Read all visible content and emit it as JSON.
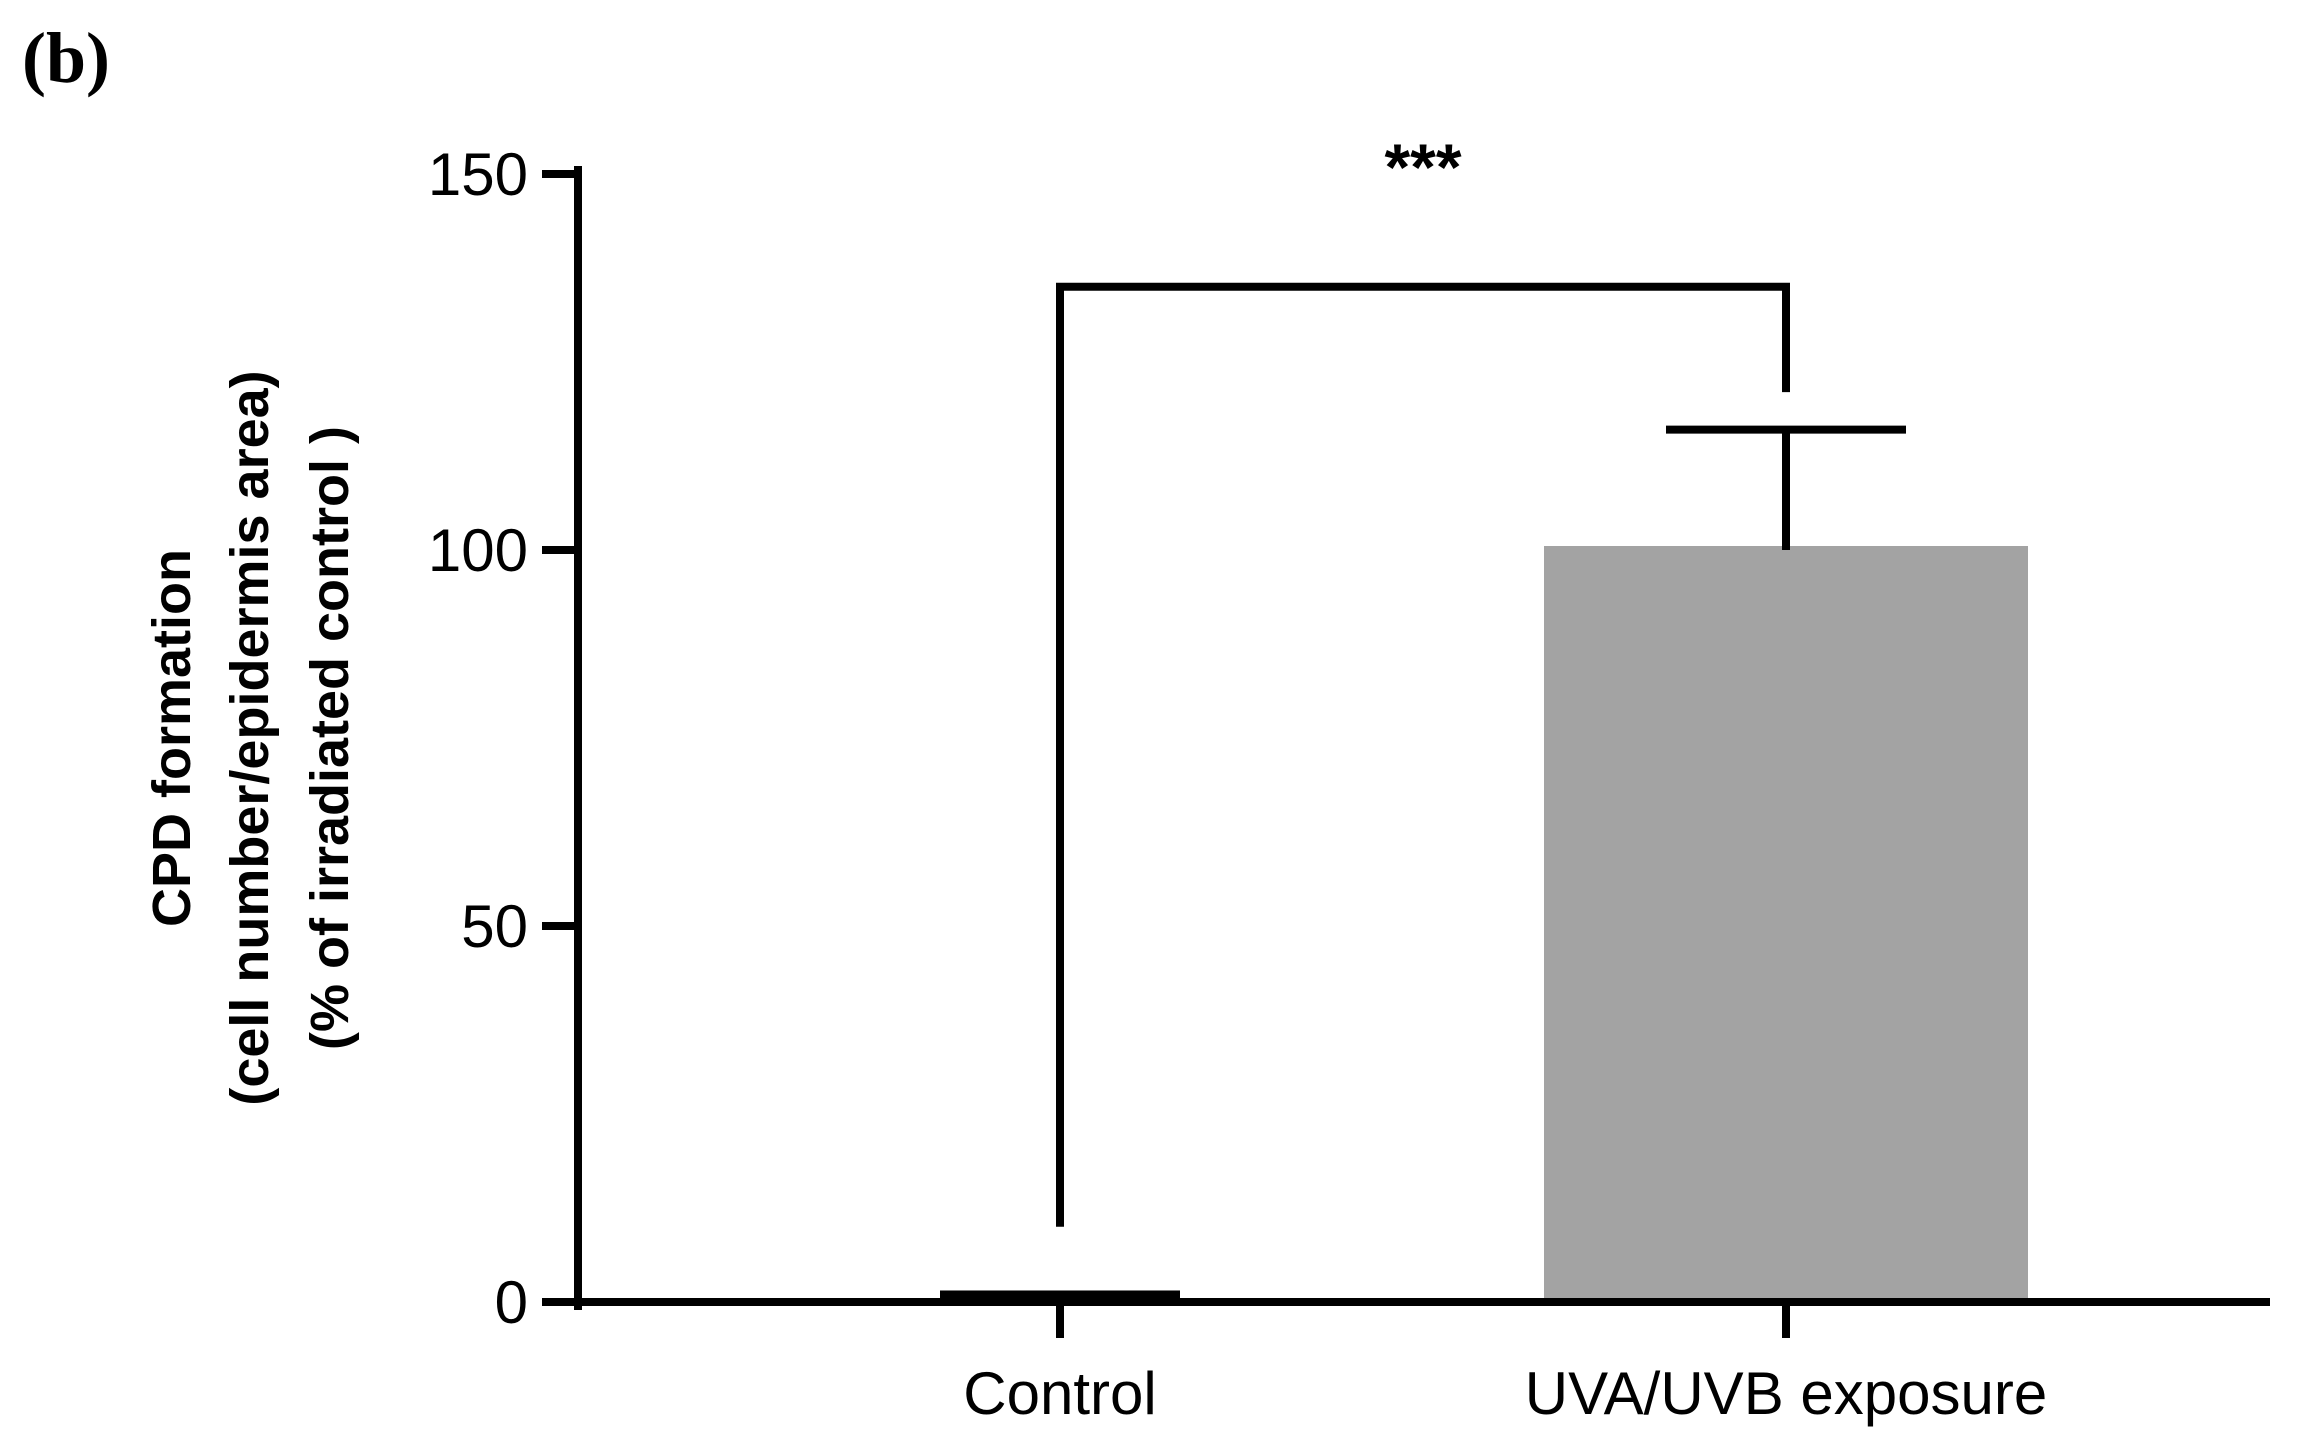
{
  "panel_label": "(b)",
  "chart_data": {
    "type": "bar",
    "categories": [
      "Control",
      "UVA/UVB exposure"
    ],
    "series": [
      {
        "values": [
          1,
          100
        ],
        "error": [
          0,
          16
        ],
        "colors": [
          "#000000",
          "#a3a3a3"
        ]
      }
    ],
    "ylabel": [
      "CPD formation",
      "(cell number/epidermis area)",
      "(% of irradiated control )"
    ],
    "xlabel": "",
    "ylim": [
      0,
      150
    ],
    "yticks": [
      0,
      50,
      100,
      150
    ],
    "significance": {
      "between": [
        "Control",
        "UVA/UVB exposure"
      ],
      "label": "***"
    },
    "grid": false,
    "legend": "none"
  }
}
